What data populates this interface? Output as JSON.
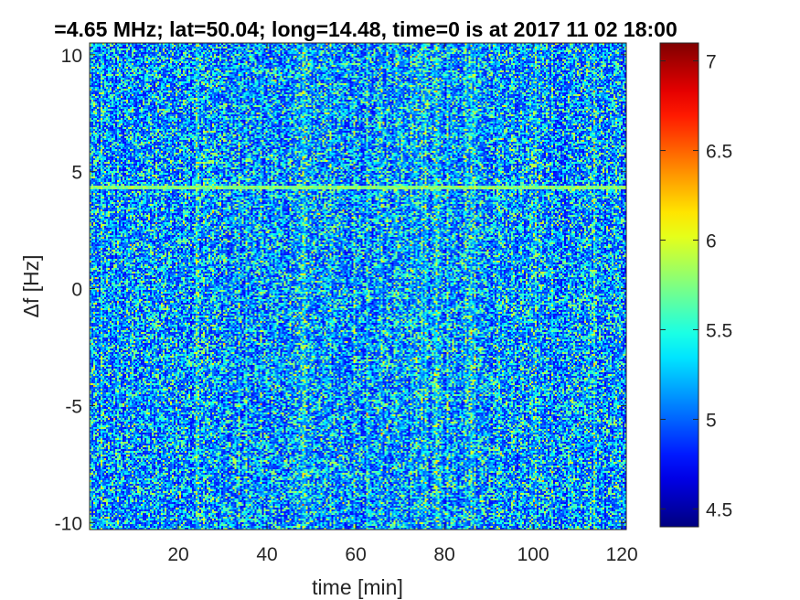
{
  "chart_data": {
    "type": "heatmap",
    "title": "=4.65 MHz;  lat=50.04; long=14.48, time=0 is at 2017 11 02 18:00",
    "xlabel": "time [min]",
    "ylabel": "Δf [Hz]",
    "xlim": [
      0,
      121
    ],
    "ylim": [
      -10.3,
      10.5
    ],
    "x_ticks": [
      20,
      40,
      60,
      80,
      100,
      120
    ],
    "y_ticks": [
      10,
      5,
      0,
      -5,
      -10
    ],
    "colorbar": {
      "colormap": "jet",
      "clim": [
        4.4,
        7.1
      ],
      "ticks": [
        4.5,
        5,
        5.5,
        6,
        6.5,
        7
      ]
    },
    "background_level": 4.8,
    "noise_level": 5.4,
    "features": [
      {
        "kind": "horizontal-line",
        "y": 4.3,
        "x_range": [
          0,
          121
        ],
        "value": 5.9
      },
      {
        "kind": "streak",
        "y_start": -4.5,
        "y_end": -4.7,
        "x_range": [
          0,
          20
        ],
        "value": 5.4
      },
      {
        "kind": "streak",
        "y_start": 0.1,
        "y_end": -0.2,
        "x_range": [
          10,
          20
        ],
        "value": 5.4
      }
    ]
  }
}
